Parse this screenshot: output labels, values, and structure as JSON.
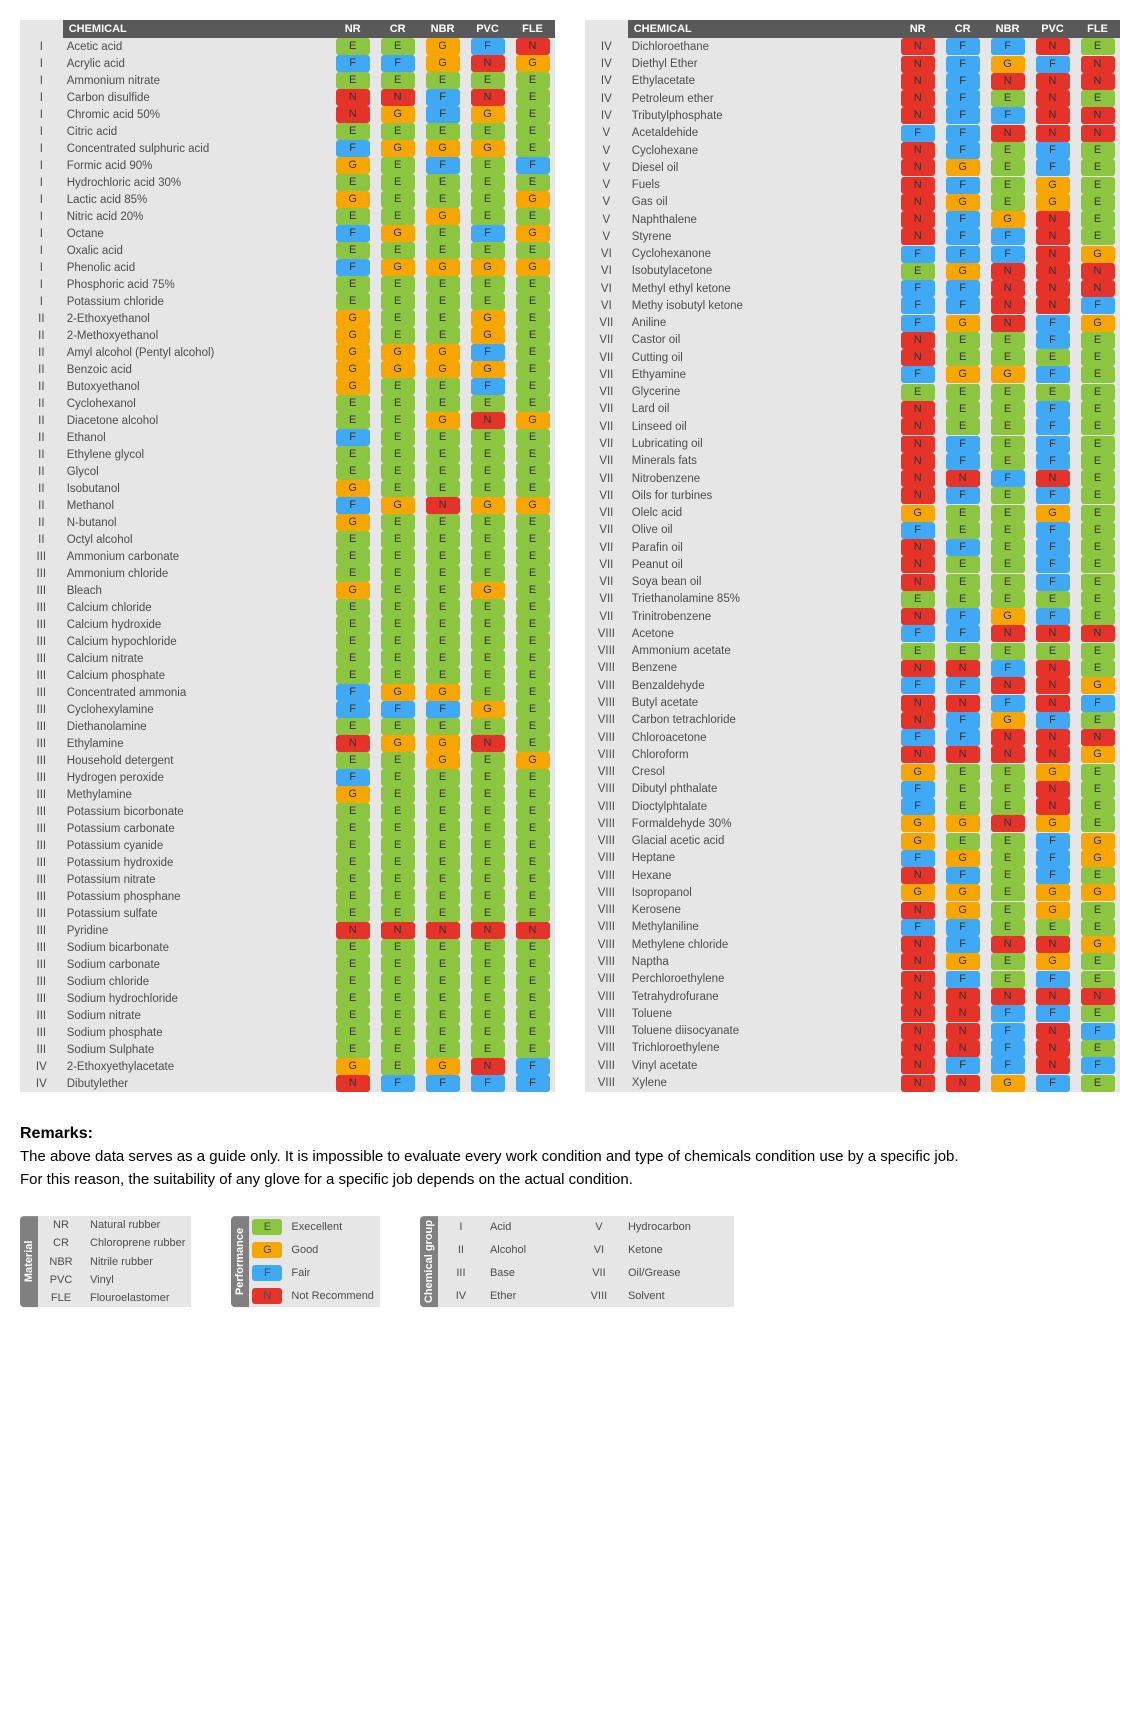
{
  "headers": [
    "",
    "CHEMICAL",
    "NR",
    "CR",
    "NBR",
    "PVC",
    "FLE"
  ],
  "colors": {
    "E": "#8cc540",
    "G": "#f7a600",
    "F": "#3fa9f5",
    "N": "#e6332a"
  },
  "left": [
    [
      "I",
      "Acetic acid",
      "E",
      "E",
      "G",
      "F",
      "N"
    ],
    [
      "I",
      "Acrylic acid",
      "F",
      "F",
      "G",
      "N",
      "G"
    ],
    [
      "I",
      "Ammonium nitrate",
      "E",
      "E",
      "E",
      "E",
      "E"
    ],
    [
      "I",
      "Carbon disulfide",
      "N",
      "N",
      "F",
      "N",
      "E"
    ],
    [
      "I",
      "Chromic acid 50%",
      "N",
      "G",
      "F",
      "G",
      "E"
    ],
    [
      "I",
      "Citric acid",
      "E",
      "E",
      "E",
      "E",
      "E"
    ],
    [
      "I",
      "Concentrated sulphuric acid",
      "F",
      "G",
      "G",
      "G",
      "E"
    ],
    [
      "I",
      "Formic acid 90%",
      "G",
      "E",
      "F",
      "E",
      "F"
    ],
    [
      "I",
      "Hydrochloric acid 30%",
      "E",
      "E",
      "E",
      "E",
      "E"
    ],
    [
      "I",
      "Lactic acid 85%",
      "G",
      "E",
      "E",
      "E",
      "G"
    ],
    [
      "I",
      "Nitric acid 20%",
      "E",
      "E",
      "G",
      "E",
      "E"
    ],
    [
      "I",
      "Octane",
      "F",
      "G",
      "E",
      "F",
      "G"
    ],
    [
      "I",
      "Oxalic acid",
      "E",
      "E",
      "E",
      "E",
      "E"
    ],
    [
      "I",
      "Phenolic acid",
      "F",
      "G",
      "G",
      "G",
      "G"
    ],
    [
      "I",
      "Phosphoric acid 75%",
      "E",
      "E",
      "E",
      "E",
      "E"
    ],
    [
      "I",
      "Potassium chloride",
      "E",
      "E",
      "E",
      "E",
      "E"
    ],
    [
      "II",
      "2-Ethoxyethanol",
      "G",
      "E",
      "E",
      "G",
      "E"
    ],
    [
      "II",
      "2-Methoxyethanol",
      "G",
      "E",
      "E",
      "G",
      "E"
    ],
    [
      "II",
      "Amyl alcohol (Pentyl alcohol)",
      "G",
      "G",
      "G",
      "F",
      "E"
    ],
    [
      "II",
      "Benzoic acid",
      "G",
      "G",
      "G",
      "G",
      "E"
    ],
    [
      "II",
      "Butoxyethanol",
      "G",
      "E",
      "E",
      "F",
      "E"
    ],
    [
      "II",
      "Cyclohexanol",
      "E",
      "E",
      "E",
      "E",
      "E"
    ],
    [
      "II",
      "Diacetone alcohol",
      "E",
      "E",
      "G",
      "N",
      "G"
    ],
    [
      "II",
      "Ethanol",
      "F",
      "E",
      "E",
      "E",
      "E"
    ],
    [
      "II",
      "Ethylene glycol",
      "E",
      "E",
      "E",
      "E",
      "E"
    ],
    [
      "II",
      "Glycol",
      "E",
      "E",
      "E",
      "E",
      "E"
    ],
    [
      "II",
      " Isobutanol",
      "G",
      "E",
      "E",
      "E",
      "E"
    ],
    [
      "II",
      "Methanol",
      "F",
      "G",
      "N",
      "G",
      "G"
    ],
    [
      "II",
      "N-butanol",
      "G",
      "E",
      "E",
      "E",
      "E"
    ],
    [
      "II",
      "Octyl alcohol",
      "E",
      "E",
      "E",
      "E",
      "E"
    ],
    [
      "III",
      "Ammonium carbonate",
      "E",
      "E",
      "E",
      "E",
      "E"
    ],
    [
      "III",
      "Ammonium chloride",
      "E",
      "E",
      "E",
      "E",
      "E"
    ],
    [
      "III",
      "Bleach",
      "G",
      "E",
      "E",
      "G",
      "E"
    ],
    [
      "III",
      "Calcium chloride",
      "E",
      "E",
      "E",
      "E",
      "E"
    ],
    [
      "III",
      "Calcium hydroxide",
      "E",
      "E",
      "E",
      "E",
      "E"
    ],
    [
      "III",
      "Calcium hypochloride",
      "E",
      "E",
      "E",
      "E",
      "E"
    ],
    [
      "III",
      "Calcium nitrate",
      "E",
      "E",
      "E",
      "E",
      "E"
    ],
    [
      "III",
      "Calcium phosphate",
      "E",
      "E",
      "E",
      "E",
      "E"
    ],
    [
      "III",
      "Concentrated ammonia",
      "F",
      "G",
      "G",
      "E",
      "E"
    ],
    [
      "III",
      "Cyclohexylamine",
      "F",
      "F",
      "F",
      "G",
      "E"
    ],
    [
      "III",
      "Diethanolamine",
      "E",
      "E",
      "E",
      "E",
      "E"
    ],
    [
      "III",
      "Ethylamine",
      "N",
      "G",
      "G",
      "N",
      "E"
    ],
    [
      "III",
      "Household detergent",
      "E",
      "E",
      "G",
      "E",
      "G"
    ],
    [
      "III",
      "Hydrogen peroxide",
      "F",
      "E",
      "E",
      "E",
      "E"
    ],
    [
      "III",
      "Methylamine",
      "G",
      "E",
      "E",
      "E",
      "E"
    ],
    [
      "III",
      "Potassium bicorbonate",
      "E",
      "E",
      "E",
      "E",
      "E"
    ],
    [
      "III",
      "Potassium carbonate",
      "E",
      "E",
      "E",
      "E",
      "E"
    ],
    [
      "III",
      "Potassium cyanide",
      "E",
      "E",
      "E",
      "E",
      "E"
    ],
    [
      "III",
      "Potassium hydroxide",
      "E",
      "E",
      "E",
      "E",
      "E"
    ],
    [
      "III",
      "Potassium nitrate",
      "E",
      "E",
      "E",
      "E",
      "E"
    ],
    [
      "III",
      "Potassium phosphane",
      "E",
      "E",
      "E",
      "E",
      "E"
    ],
    [
      "III",
      "Potassium sulfate",
      "E",
      "E",
      "E",
      "E",
      "E"
    ],
    [
      "III",
      "Pyridine",
      "N",
      "N",
      "N",
      "N",
      "N"
    ],
    [
      "III",
      "Sodium bicarbonate",
      "E",
      "E",
      "E",
      "E",
      "E"
    ],
    [
      "III",
      "Sodium carbonate",
      "E",
      "E",
      "E",
      "E",
      "E"
    ],
    [
      "III",
      "Sodium chloride",
      "E",
      "E",
      "E",
      "E",
      "E"
    ],
    [
      "III",
      "Sodium hydrochloride",
      "E",
      "E",
      "E",
      "E",
      "E"
    ],
    [
      "III",
      "Sodium nitrate",
      "E",
      "E",
      "E",
      "E",
      "E"
    ],
    [
      "III",
      "Sodium phosphate",
      "E",
      "E",
      "E",
      "E",
      "E"
    ],
    [
      "III",
      "Sodium Sulphate",
      "E",
      "E",
      "E",
      "E",
      "E"
    ],
    [
      "IV",
      "2-Ethoxyethylacetate",
      "G",
      "E",
      "G",
      "N",
      "F"
    ],
    [
      "IV",
      "Dibutylether",
      "N",
      "F",
      "F",
      "F",
      "F"
    ]
  ],
  "right": [
    [
      "IV",
      "Dichloroethane",
      "N",
      "F",
      "F",
      "N",
      "E"
    ],
    [
      "IV",
      "Diethyl Ether",
      "N",
      "F",
      "G",
      "F",
      "N"
    ],
    [
      "IV",
      "Ethylacetate",
      "N",
      "F",
      "N",
      "N",
      "N"
    ],
    [
      "IV",
      "Petroleum ether",
      "N",
      "F",
      "E",
      "N",
      "E"
    ],
    [
      "IV",
      "Tributylphosphate",
      "N",
      "F",
      "F",
      "N",
      "N"
    ],
    [
      "V",
      "Acetaldehide",
      "F",
      "F",
      "N",
      "N",
      "N"
    ],
    [
      "V",
      "Cyclohexane",
      "N",
      "F",
      "E",
      "F",
      "E"
    ],
    [
      "V",
      "Diesel oil",
      "N",
      "G",
      "E",
      "F",
      "E"
    ],
    [
      "V",
      "Fuels",
      "N",
      "F",
      "E",
      "G",
      "E"
    ],
    [
      "V",
      "Gas oil",
      "N",
      "G",
      "E",
      "G",
      "E"
    ],
    [
      "V",
      "Naphthalene",
      "N",
      "F",
      "G",
      "N",
      "E"
    ],
    [
      "V",
      "Styrene",
      "N",
      "F",
      "F",
      "N",
      "E"
    ],
    [
      "VI",
      "Cyclohexanone",
      "F",
      "F",
      "F",
      "N",
      "G"
    ],
    [
      "VI",
      "Isobutylacetone",
      "E",
      "G",
      "N",
      "N",
      "N"
    ],
    [
      "VI",
      "Methyl ethyl ketone",
      "F",
      "F",
      "N",
      "N",
      "N"
    ],
    [
      "VI",
      "Methy isobutyl ketone",
      "F",
      "F",
      "N",
      "N",
      "F"
    ],
    [
      "VII",
      "Aniline",
      "F",
      "G",
      "N",
      "F",
      "G"
    ],
    [
      "VII",
      "Castor oil",
      "N",
      "E",
      "E",
      "F",
      "E"
    ],
    [
      "VII",
      "Cutting oil",
      "N",
      "E",
      "E",
      "E",
      "E"
    ],
    [
      "VII",
      "Ethyamine",
      "F",
      "G",
      "G",
      "F",
      "E"
    ],
    [
      "VII",
      "Glycerine",
      "E",
      "E",
      "E",
      "E",
      "E"
    ],
    [
      "VII",
      "Lard oil",
      "N",
      "E",
      "E",
      "F",
      "E"
    ],
    [
      "VII",
      "Linseed oil",
      "N",
      "E",
      "E",
      "F",
      "E"
    ],
    [
      "VII",
      "Lubricating oil",
      "N",
      "F",
      "E",
      "F",
      "E"
    ],
    [
      "VII",
      "Minerals fats",
      "N",
      "F",
      "E",
      "F",
      "E"
    ],
    [
      "VII",
      "Nitrobenzene",
      "N",
      "N",
      "F",
      "N",
      "E"
    ],
    [
      "VII",
      "Oils for turbines",
      "N",
      "F",
      "E",
      "F",
      "E"
    ],
    [
      "VII",
      "Olelc acid",
      "G",
      "E",
      "E",
      "G",
      "E"
    ],
    [
      "VII",
      "Olive oil",
      "F",
      "E",
      "E",
      "F",
      "E"
    ],
    [
      "VII",
      "Parafin oil",
      "N",
      "F",
      "E",
      "F",
      "E"
    ],
    [
      "VII",
      "Peanut oil",
      "N",
      "E",
      "E",
      "F",
      "E"
    ],
    [
      "VII",
      "Soya bean oil",
      "N",
      "E",
      "E",
      "F",
      "E"
    ],
    [
      "VII",
      "Triethanolamine 85%",
      "E",
      "E",
      "E",
      "E",
      "E"
    ],
    [
      "VII",
      "Trinitrobenzene",
      "N",
      "F",
      "G",
      "F",
      "E"
    ],
    [
      "VIII",
      "Acetone",
      "F",
      "F",
      "N",
      "N",
      "N"
    ],
    [
      "VIII",
      "Ammonium acetate",
      "E",
      "E",
      "E",
      "E",
      "E"
    ],
    [
      "VIII",
      "Benzene",
      "N",
      "N",
      "F",
      "N",
      "E"
    ],
    [
      "VIII",
      "Benzaldehyde",
      "F",
      "F",
      "N",
      "N",
      "G"
    ],
    [
      "VIII",
      "Butyl acetate",
      "N",
      "N",
      "F",
      "N",
      "F"
    ],
    [
      "VIII",
      "Carbon tetrachloride",
      "N",
      "F",
      "G",
      "F",
      "E"
    ],
    [
      "VIII",
      "Chloroacetone",
      "F",
      "F",
      "N",
      "N",
      "N"
    ],
    [
      "VIII",
      "Chloroform",
      "N",
      "N",
      "N",
      "N",
      "G"
    ],
    [
      "VIII",
      "Cresol",
      "G",
      "E",
      "E",
      "G",
      "E"
    ],
    [
      "VIII",
      "Dibutyl phthalate",
      "F",
      "E",
      "E",
      "N",
      "E"
    ],
    [
      "VIII",
      "Dioctylphtalate",
      "F",
      "E",
      "E",
      "N",
      "E"
    ],
    [
      "VIII",
      "Formaldehyde 30%",
      "G",
      "G",
      "N",
      "G",
      "E"
    ],
    [
      "VIII",
      "Glacial acetic acid",
      "G",
      "E",
      "E",
      "F",
      "G"
    ],
    [
      "VIII",
      "Heptane",
      "F",
      "G",
      "E",
      "F",
      "G"
    ],
    [
      "VIII",
      "Hexane",
      "N",
      "F",
      "E",
      "F",
      "E"
    ],
    [
      "VIII",
      "Isopropanol",
      "G",
      "G",
      "E",
      "G",
      "G"
    ],
    [
      "VIII",
      "Kerosene",
      "N",
      "G",
      "E",
      "G",
      "E"
    ],
    [
      "VIII",
      "Methylaniline",
      "F",
      "F",
      "E",
      "E",
      "E"
    ],
    [
      "VIII",
      "Methylene chloride",
      "N",
      "F",
      "N",
      "N",
      "G"
    ],
    [
      "VIII",
      "Naptha",
      "N",
      "G",
      "E",
      "G",
      "E"
    ],
    [
      "VIII",
      "Perchloroethylene",
      "N",
      "F",
      "E",
      "F",
      "E"
    ],
    [
      "VIII",
      "Tetrahydrofurane",
      "N",
      "N",
      "N",
      "N",
      "N"
    ],
    [
      "VIII",
      "Toluene",
      "N",
      "N",
      "F",
      "F",
      "E"
    ],
    [
      "VIII",
      "Toluene diisocyanate",
      "N",
      "N",
      "F",
      "N",
      "F"
    ],
    [
      "VIII",
      "Trichloroethylene",
      "N",
      "N",
      "F",
      "N",
      "E"
    ],
    [
      "VIII",
      "Vinyl acetate",
      "N",
      "F",
      "F",
      "N",
      "F"
    ],
    [
      "VIII",
      "Xylene",
      "N",
      "N",
      "G",
      "F",
      "E"
    ]
  ],
  "remarks": {
    "title": "Remarks:",
    "line1": "The above data serves as a guide only. It is impossible to evaluate every work condition and type of chemicals condition use by a specific job.",
    "line2": "For this reason, the suitability of any glove for a specific job depends on the actual condition."
  },
  "legend_material": {
    "title": "Material",
    "rows": [
      [
        "NR",
        "Natural rubber"
      ],
      [
        "CR",
        "Chloroprene rubber"
      ],
      [
        "NBR",
        "Nitrile rubber"
      ],
      [
        "PVC",
        "Vinyl"
      ],
      [
        "FLE",
        "Flouroelastomer"
      ]
    ]
  },
  "legend_performance": {
    "title": "Performance",
    "rows": [
      [
        "E",
        "Execellent"
      ],
      [
        "G",
        "Good"
      ],
      [
        "F",
        "Fair"
      ],
      [
        "N",
        "Not Recommend"
      ]
    ]
  },
  "legend_group": {
    "title": "Chemical group",
    "rows": [
      [
        "I",
        "Acid",
        "V",
        "Hydrocarbon"
      ],
      [
        "II",
        "Alcohol",
        "VI",
        "Ketone"
      ],
      [
        "III",
        "Base",
        "VII",
        "Oil/Grease"
      ],
      [
        "IV",
        "Ether",
        "VIII",
        "Solvent"
      ]
    ]
  }
}
